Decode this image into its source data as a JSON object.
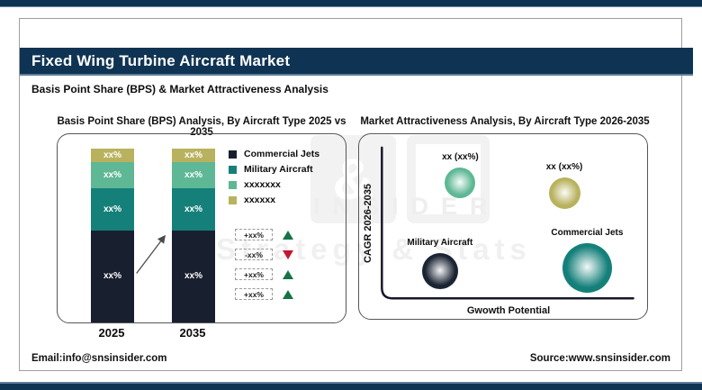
{
  "header": {
    "title": "Fixed Wing Turbine Aircraft Market",
    "subtitle": "Basis Point Share (BPS) & Market Attractiveness Analysis"
  },
  "footer": {
    "email": "Email:info@snsinsider.com",
    "source": "Source:www.snsinsider.com"
  },
  "watermark": {
    "amp": "&",
    "line1": "INSIDER",
    "line2": "Strategy & Stats"
  },
  "colors": {
    "brand_navy": "#0F3453",
    "steel_accent": "#5F7E99",
    "bar_navy": "#181F2F",
    "teal": "#15807A",
    "seafoam": "#5EB795",
    "khaki": "#B8B25E",
    "up_green": "#157347",
    "down_red": "#C2182F"
  },
  "chart_data": [
    {
      "id": "bps-analysis",
      "type": "bar",
      "variant": "stacked-column",
      "title": "Basis Point Share (BPS) Analysis, By Aircraft Type 2025 vs 2035",
      "categories": [
        "2025",
        "2035"
      ],
      "series": [
        {
          "name": "Commercial Jets",
          "color": "#181F2F",
          "values": [
            "xx%",
            "xx%"
          ],
          "share_pct": [
            53,
            53
          ]
        },
        {
          "name": "Military Aircraft",
          "color": "#15807A",
          "values": [
            "xx%",
            "xx%"
          ],
          "share_pct": [
            24,
            24
          ]
        },
        {
          "name": "xxxxxxx",
          "color": "#5EB795",
          "values": [
            "xx%",
            "xx%"
          ],
          "share_pct": [
            15,
            15
          ]
        },
        {
          "name": "xxxxxx",
          "color": "#B8B25E",
          "values": [
            "xx%",
            "xx%"
          ],
          "share_pct": [
            8,
            8
          ]
        }
      ],
      "changes": [
        {
          "value": "+xx%",
          "direction": "up"
        },
        {
          "value": "-xx%",
          "direction": "down"
        },
        {
          "value": "+xx%",
          "direction": "up"
        },
        {
          "value": "+xx%",
          "direction": "up"
        }
      ],
      "legend_position": "right",
      "grid": false
    },
    {
      "id": "market-attractiveness",
      "type": "scatter",
      "variant": "bubble",
      "title": "Market Attractiveness Analysis, By Aircraft Type 2026-2035",
      "xlabel": "Gwowth Potential",
      "ylabel": "CAGR 2026-2035",
      "axis_ranges": {
        "x_pct": [
          0,
          100
        ],
        "y_pct": [
          0,
          100
        ]
      },
      "grid": false,
      "points": [
        {
          "label": "xx (xx%)",
          "color": "#5EB795",
          "x_pct": 31,
          "y_pct": 77,
          "r": 17
        },
        {
          "label": "xx (xx%)",
          "color": "#B8B25E",
          "x_pct": 72,
          "y_pct": 70,
          "r": 17.5
        },
        {
          "label": "Military Aircraft",
          "color": "#1B2433",
          "x_pct": 23,
          "y_pct": 19,
          "r": 20
        },
        {
          "label": "Commercial Jets",
          "color": "#15807A",
          "x_pct": 81,
          "y_pct": 21,
          "r": 27.5
        }
      ]
    }
  ]
}
